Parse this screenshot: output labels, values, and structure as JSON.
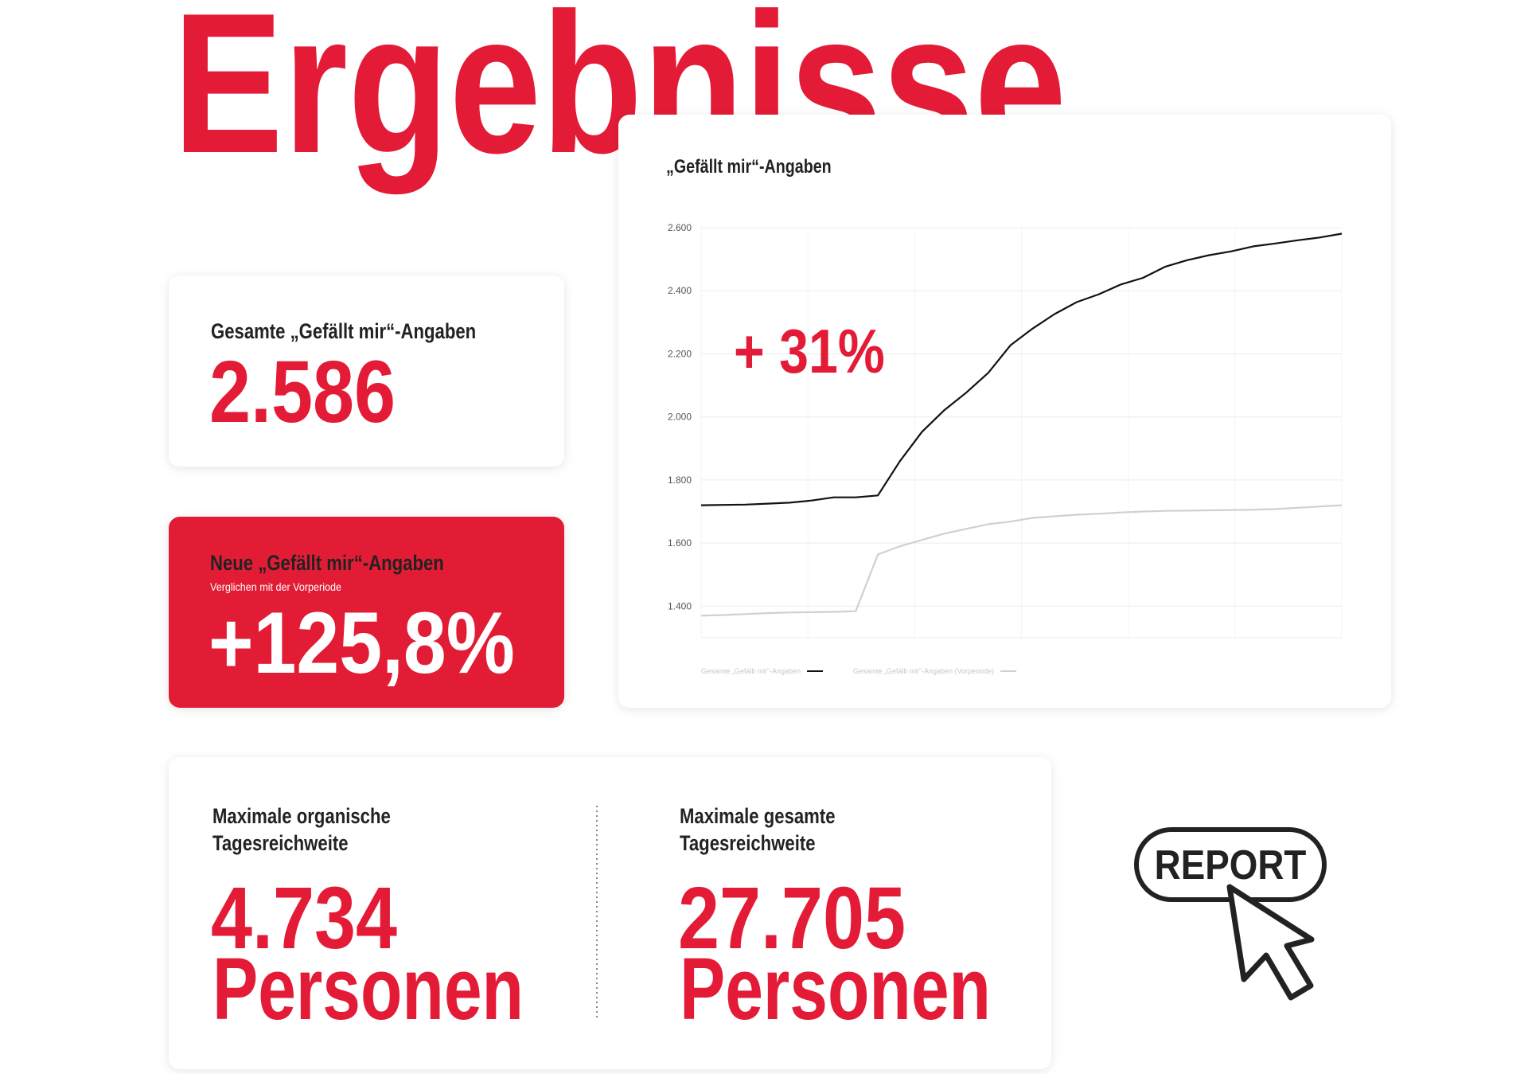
{
  "title": "Ergebnisse",
  "cards": {
    "total": {
      "label": "Gesamte „Gefällt mir“-Angaben",
      "value": "2.586"
    },
    "new": {
      "label": "Neue „Gefällt mir“-Angaben",
      "subtitle": "Verglichen mit der Vorperiode",
      "value": "+125,8%"
    },
    "reach": [
      {
        "label_lines": [
          "Maximale organische",
          "Tagesreichweite"
        ],
        "value": "4.734",
        "unit": "Personen"
      },
      {
        "label_lines": [
          "Maximale gesamte",
          "Tagesreichweite"
        ],
        "value": "27.705",
        "unit": "Personen"
      }
    ]
  },
  "chart_data": {
    "type": "line",
    "title": "„Gefällt mir“-Angaben",
    "annotation": "+ 31%",
    "categories": [
      null,
      null,
      null,
      null,
      null,
      null,
      null,
      null,
      null,
      null,
      null,
      null,
      null,
      null,
      null,
      null,
      null,
      null,
      null,
      null,
      null,
      null,
      null,
      null,
      null,
      null,
      null,
      null,
      null,
      null
    ],
    "series": [
      {
        "name": "Gesamte „Gefällt mir“-Angaben",
        "color": "#111111",
        "values": [
          1720,
          1721,
          1722,
          1725,
          1728,
          1735,
          1745,
          1745,
          1751,
          1860,
          1953,
          2021,
          2077,
          2140,
          2227,
          2280,
          2326,
          2364,
          2389,
          2420,
          2441,
          2476,
          2497,
          2513,
          2525,
          2541,
          2550,
          2560,
          2569,
          2581
        ]
      },
      {
        "name": "Gesamte „Gefällt mir“-Angaben (Vorperiode)",
        "color": "#d0d0d0",
        "values": [
          1370,
          1372,
          1375,
          1378,
          1380,
          1381,
          1382,
          1384,
          1564,
          1590,
          1610,
          1630,
          1645,
          1660,
          1668,
          1680,
          1685,
          1690,
          1693,
          1697,
          1700,
          1702,
          1703,
          1704,
          1705,
          1706,
          1708,
          1712,
          1716,
          1720
        ]
      }
    ],
    "ylim": [
      1300,
      2600
    ],
    "yticks": [
      {
        "value": 1400,
        "label": "1.400"
      },
      {
        "value": 1600,
        "label": "1.600"
      },
      {
        "value": 1800,
        "label": "1.800"
      },
      {
        "value": 2000,
        "label": "2.000"
      },
      {
        "value": 2200,
        "label": "2.200"
      },
      {
        "value": 2400,
        "label": "2.400"
      },
      {
        "value": 2600,
        "label": "2.600"
      }
    ],
    "grid": true
  },
  "report": "REPORT"
}
